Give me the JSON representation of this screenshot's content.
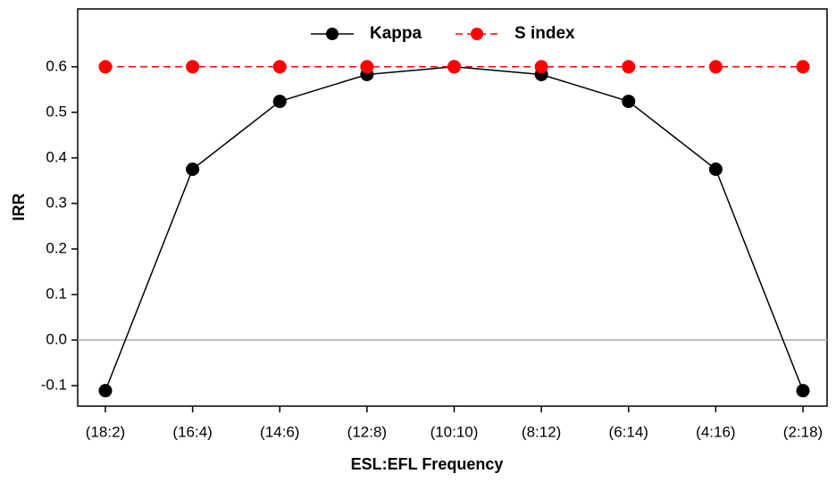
{
  "chart_data": {
    "type": "line",
    "x_label": "ESL:EFL Frequency",
    "y_label": "IRR",
    "categories": [
      "(18:2)",
      "(16:4)",
      "(14:6)",
      "(12:8)",
      "(10:10)",
      "(8:12)",
      "(6:14)",
      "(4:16)",
      "(2:18)"
    ],
    "series": [
      {
        "name": "Kappa",
        "color": "#000000",
        "dash": false,
        "values": [
          -0.111,
          0.375,
          0.524,
          0.583,
          0.6,
          0.583,
          0.524,
          0.375,
          -0.111
        ]
      },
      {
        "name": "S index",
        "color": "#ff0000",
        "dash": true,
        "values": [
          0.6,
          0.6,
          0.6,
          0.6,
          0.6,
          0.6,
          0.6,
          0.6,
          0.6
        ]
      }
    ],
    "ylim": [
      -0.145,
      0.727
    ],
    "yticks": [
      -0.1,
      {
        "value": 0,
        "label": "0.0"
      },
      0.1,
      0.2,
      0.3,
      0.4,
      0.5,
      0.6
    ],
    "zero_line": true,
    "legend": "top"
  }
}
